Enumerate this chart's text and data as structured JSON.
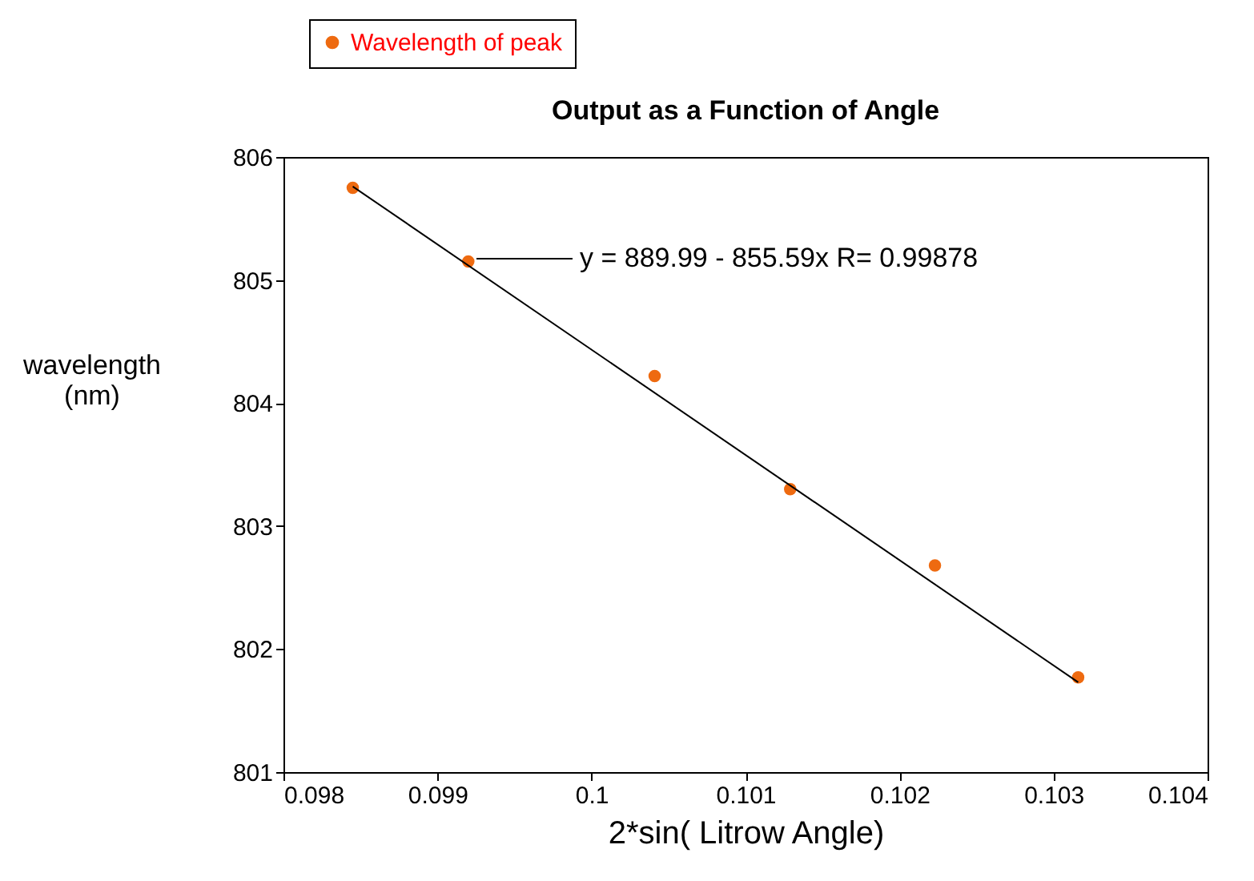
{
  "chart_data": {
    "type": "scatter",
    "title": "Output as a Function of Angle",
    "xlabel": "2*sin( Litrow Angle)",
    "ylabel": "wavelength (nm)",
    "xlim": [
      0.098,
      0.104
    ],
    "xticks": [
      0.098,
      0.099,
      0.1,
      0.101,
      0.102,
      0.103,
      0.104
    ],
    "ylim": [
      801,
      806
    ],
    "yticks": [
      801,
      802,
      803,
      804,
      805,
      806
    ],
    "grid": false,
    "legend": "top left",
    "series": [
      {
        "name": "Wavelength of peak",
        "marker": "circle",
        "color": "#ee6a10",
        "x": [
          0.09845,
          0.0992,
          0.10041,
          0.10129,
          0.10223,
          0.10316
        ],
        "values": [
          805.75,
          805.15,
          804.22,
          803.3,
          802.68,
          801.77
        ]
      },
      {
        "name": "y = 889.99 - 855.59x   R= 0.99878",
        "type": "line",
        "marker": "none",
        "line_style": "solid",
        "color": "#000000",
        "x": [
          0.09845,
          0.10316
        ],
        "values": [
          805.76,
          801.73
        ]
      }
    ]
  }
}
